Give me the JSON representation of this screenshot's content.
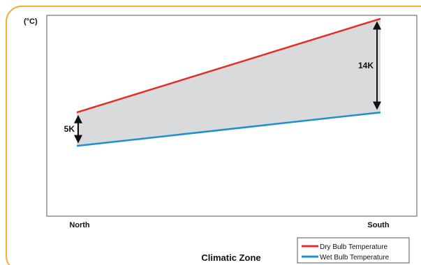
{
  "chart_data": {
    "type": "line",
    "x_unit_label": "(°C)",
    "xlabel": "Climatic Zone",
    "categories": [
      "North",
      "South"
    ],
    "ylim": [
      0,
      30
    ],
    "grid": false,
    "legend_position": "bottom-right",
    "series": [
      {
        "name": "Dry Bulb Temperature",
        "color": "#e0302a",
        "values": [
          15.5,
          29.5
        ]
      },
      {
        "name": "Wet Bulb Temperature",
        "color": "#1f8fd0",
        "values": [
          10.5,
          15.5
        ]
      }
    ],
    "fill_between_color": "#d9dadc",
    "annotations": [
      {
        "text": "5K",
        "category_index": 0,
        "from": 10.5,
        "to": 15.5
      },
      {
        "text": "14K",
        "category_index": 1,
        "from": 15.5,
        "to": 29.5
      }
    ]
  },
  "frame": {
    "border_color": "#f3b12c"
  }
}
